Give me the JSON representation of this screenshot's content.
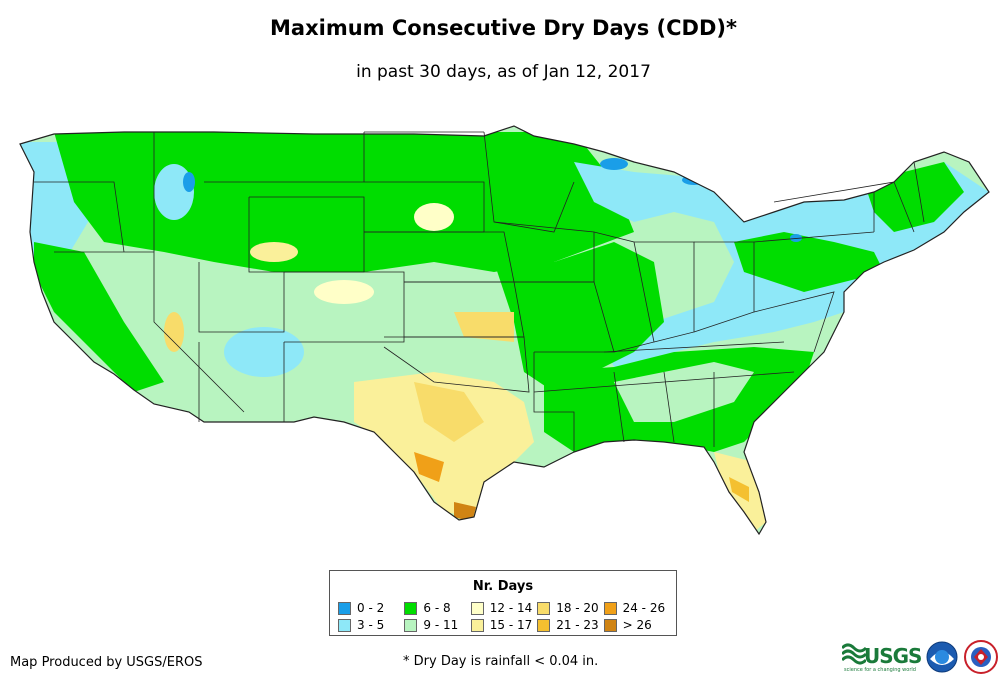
{
  "header": {
    "title": "Maximum Consecutive Dry Days (CDD)*",
    "subtitle": "in past 30 days, as of Jan 12, 2017"
  },
  "legend": {
    "title": "Nr. Days",
    "items": [
      {
        "label": "0 - 2",
        "color": "#1a9ee8"
      },
      {
        "label": "6 - 8",
        "color": "#00dd00"
      },
      {
        "label": "12 - 14",
        "color": "#ffffc8"
      },
      {
        "label": "18 - 20",
        "color": "#f8dc6a"
      },
      {
        "label": "24 - 26",
        "color": "#f0a018"
      },
      {
        "label": "3 - 5",
        "color": "#8ee8f8"
      },
      {
        "label": "9 - 11",
        "color": "#b8f4c0"
      },
      {
        "label": "15 - 17",
        "color": "#faf09a"
      },
      {
        "label": "21 - 23",
        "color": "#f4c030"
      },
      {
        "label": "> 26",
        "color": "#d08414"
      }
    ]
  },
  "footer": {
    "credit": "Map Produced by USGS/EROS",
    "footnote": "* Dry Day is rainfall < 0.04 in.",
    "usgs_logo": "USGS",
    "usgs_tagline": "science for a changing world"
  },
  "colors": {
    "c0_2": "#1a9ee8",
    "c3_5": "#8ee8f8",
    "c6_8": "#00dd00",
    "c9_11": "#b8f4c0",
    "c12_14": "#ffffc8",
    "c15_17": "#faf09a",
    "c18_20": "#f8dc6a",
    "c21_23": "#f4c030",
    "c24_26": "#f0a018",
    "c26p": "#d08414"
  }
}
